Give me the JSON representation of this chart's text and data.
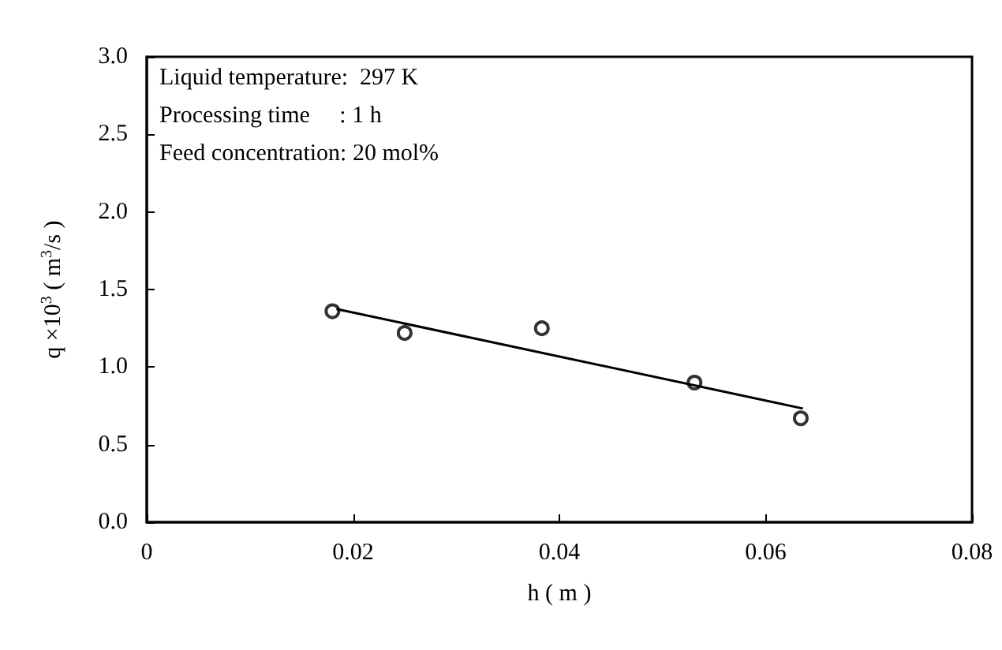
{
  "chart_data": {
    "type": "scatter",
    "xlabel": "h ( m )",
    "ylabel": "q ×10$^{3}$ ( m$^{3}$/s )",
    "annotations": [
      "Liquid temperature:  297 K",
      "Processing time     : 1 h",
      "Feed concentration: 20 mol%"
    ],
    "xlim": [
      0,
      0.08
    ],
    "xticks": [
      0,
      0.02,
      0.04,
      0.06,
      0.08
    ],
    "ylim": [
      0,
      3
    ],
    "yticks": [
      {
        "value": 0,
        "label": "0.0"
      },
      {
        "value": 0.5,
        "label": "0.5"
      },
      {
        "value": 1,
        "label": "1.0"
      },
      {
        "value": 1.5,
        "label": "1.5"
      },
      {
        "value": 2,
        "label": "2.0"
      },
      {
        "value": 2.5,
        "label": "2.5"
      },
      {
        "value": 3,
        "label": "3.0"
      }
    ],
    "grid": false,
    "marker": "circle",
    "series": [
      {
        "color": "#000000",
        "x": [
          0.018,
          0.025,
          0.0383,
          0.0531,
          0.0634
        ],
        "values": [
          1.36,
          1.22,
          1.25,
          0.9,
          0.67
        ]
      },
      {
        "type": "line",
        "color": "#000000",
        "marker": "none",
        "line_style": "solid",
        "x": [
          0.0184,
          0.0636
        ],
        "values": [
          1.374,
          0.733
        ]
      }
    ]
  }
}
